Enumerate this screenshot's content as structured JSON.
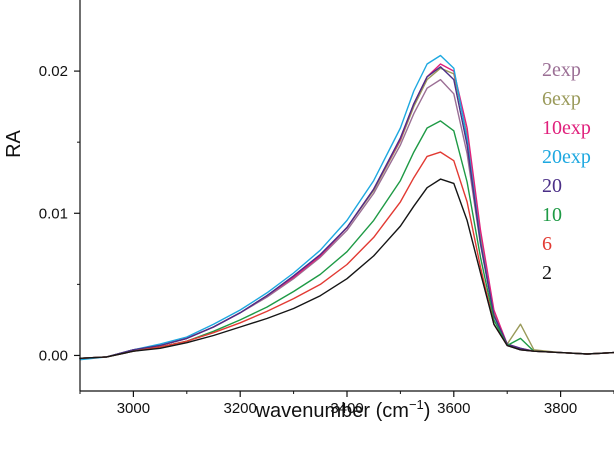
{
  "chart_data": {
    "type": "line",
    "title": "",
    "xlabel": "wavenumber (cm",
    "xlabel_sup": "−1",
    "xlabel_close": ")",
    "ylabel": "RA",
    "xlim": [
      2900,
      3900
    ],
    "ylim": [
      -0.0025,
      0.025
    ],
    "xticks": [
      3000,
      3200,
      3400,
      3600,
      3800
    ],
    "xtick_labels": [
      "3000",
      "3200",
      "3400",
      "3600",
      "3800"
    ],
    "yticks": [
      0.0,
      0.01,
      0.02
    ],
    "ytick_labels": [
      "0.00",
      "0.01",
      "0.02"
    ],
    "grid": false,
    "legend_position": "right",
    "x": [
      2900,
      2950,
      3000,
      3050,
      3100,
      3150,
      3200,
      3250,
      3300,
      3350,
      3400,
      3450,
      3500,
      3525,
      3550,
      3575,
      3600,
      3625,
      3650,
      3675,
      3700,
      3725,
      3750,
      3800,
      3850,
      3900
    ],
    "series": [
      {
        "name": "2exp",
        "color": "#9b6f95",
        "values": [
          -0.0002,
          -0.0001,
          0.0004,
          0.0007,
          0.0012,
          0.002,
          0.003,
          0.0041,
          0.0054,
          0.0069,
          0.0088,
          0.0114,
          0.0148,
          0.017,
          0.0188,
          0.0194,
          0.0184,
          0.0142,
          0.0078,
          0.0028,
          0.0007,
          0.0004,
          0.0003,
          0.0002,
          0.0001,
          0.0002
        ]
      },
      {
        "name": "6exp",
        "color": "#9a9a5a",
        "values": [
          -0.0002,
          -0.0001,
          0.0004,
          0.0007,
          0.0012,
          0.002,
          0.003,
          0.0042,
          0.0055,
          0.007,
          0.009,
          0.0116,
          0.0151,
          0.0175,
          0.0194,
          0.0202,
          0.0198,
          0.0155,
          0.0084,
          0.003,
          0.0008,
          0.0022,
          0.0004,
          0.0002,
          0.0001,
          0.0002
        ]
      },
      {
        "name": "10exp",
        "color": "#e0207c",
        "values": [
          -0.0002,
          -0.0001,
          0.0004,
          0.0007,
          0.0012,
          0.002,
          0.003,
          0.0042,
          0.0055,
          0.007,
          0.009,
          0.0117,
          0.0152,
          0.0177,
          0.0196,
          0.0205,
          0.02,
          0.016,
          0.0088,
          0.0032,
          0.0008,
          0.0005,
          0.0003,
          0.0002,
          0.0001,
          0.0002
        ]
      },
      {
        "name": "20exp",
        "color": "#1da8e0",
        "values": [
          -0.0003,
          -0.0001,
          0.0004,
          0.0008,
          0.0013,
          0.0022,
          0.0032,
          0.0044,
          0.0058,
          0.0074,
          0.0095,
          0.0123,
          0.016,
          0.0186,
          0.0205,
          0.0211,
          0.0202,
          0.0152,
          0.008,
          0.0028,
          0.0007,
          0.0004,
          0.0003,
          0.0002,
          0.0001,
          0.0002
        ]
      },
      {
        "name": "20",
        "color": "#4b2f87",
        "values": [
          -0.0002,
          -0.0001,
          0.0004,
          0.0007,
          0.0012,
          0.002,
          0.003,
          0.0042,
          0.0056,
          0.0071,
          0.009,
          0.0117,
          0.0153,
          0.0177,
          0.0196,
          0.0203,
          0.0194,
          0.0148,
          0.0079,
          0.0028,
          0.0008,
          0.0005,
          0.0003,
          0.0002,
          0.0001,
          0.0002
        ]
      },
      {
        "name": "10",
        "color": "#1e9a45",
        "values": [
          -0.0002,
          -0.0001,
          0.0003,
          0.0006,
          0.001,
          0.0017,
          0.0025,
          0.0034,
          0.0045,
          0.0057,
          0.0073,
          0.0095,
          0.0123,
          0.0143,
          0.016,
          0.0165,
          0.0158,
          0.0122,
          0.0069,
          0.0025,
          0.0007,
          0.0012,
          0.0003,
          0.0002,
          0.0001,
          0.0002
        ]
      },
      {
        "name": "6",
        "color": "#e23a33",
        "values": [
          -0.0002,
          -0.0001,
          0.0003,
          0.0006,
          0.001,
          0.0016,
          0.0023,
          0.0031,
          0.004,
          0.005,
          0.0064,
          0.0083,
          0.0108,
          0.0125,
          0.014,
          0.0143,
          0.0137,
          0.0108,
          0.0062,
          0.0022,
          0.0007,
          0.0004,
          0.0003,
          0.0002,
          0.0001,
          0.0002
        ]
      },
      {
        "name": "2",
        "color": "#151515",
        "values": [
          -0.0002,
          -0.0001,
          0.0003,
          0.0005,
          0.0009,
          0.0014,
          0.002,
          0.0026,
          0.0033,
          0.0042,
          0.0054,
          0.007,
          0.0091,
          0.0105,
          0.0118,
          0.0124,
          0.0121,
          0.0095,
          0.0058,
          0.0022,
          0.0007,
          0.0004,
          0.0003,
          0.0002,
          0.0001,
          0.0002
        ]
      }
    ]
  }
}
